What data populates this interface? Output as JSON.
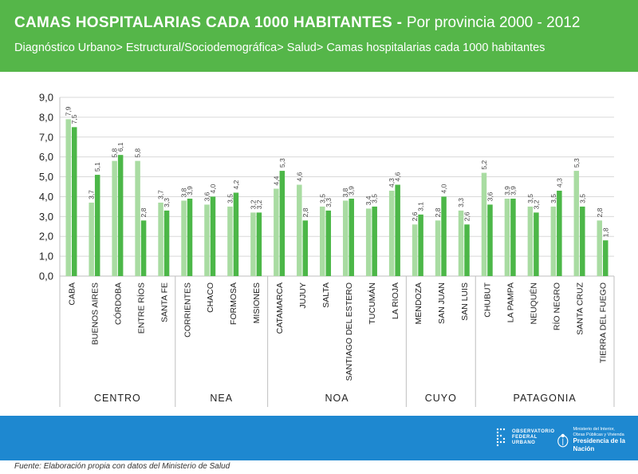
{
  "header": {
    "title_bold": "CAMAS HOSPITALARIAS CADA 1000 HABITANTES - ",
    "title_rest": "Por provincia 2000 - 2012",
    "subtitle": "Diagnóstico Urbano> Estructural/Sociodemográfica> Salud> Camas hospitalarias cada 1000 habitantes"
  },
  "footer": {
    "source": "Fuente: Elaboración propia con datos del Ministerio de Salud",
    "logo1_lines": [
      "OBSERVATORIO",
      "FEDERAL",
      "URBANO"
    ],
    "logo2_small": [
      "Ministerio del Interior,",
      "Obras Públicas y Vivienda"
    ],
    "logo2_big": "Presidencia de la Nación"
  },
  "colors": {
    "header_bg": "#55b649",
    "series_2000": "#a9dca2",
    "series_2012": "#4cb748",
    "footer_band": "#1e88d0"
  },
  "chart_data": {
    "type": "bar",
    "title": "CAMAS HOSPITALARIAS CADA 1000 HABITANTES - Por provincia 2000 - 2012",
    "xlabel": "",
    "ylabel": "",
    "ylim": [
      0,
      9
    ],
    "yticks": [
      "0,0",
      "1,0",
      "2,0",
      "3,0",
      "4,0",
      "5,0",
      "6,0",
      "7,0",
      "8,0",
      "9,0"
    ],
    "grid": true,
    "categories": [
      "CABA",
      "BUENOS AIRES",
      "CÓRDOBA",
      "ENTRE RÍOS",
      "SANTA FE",
      "CORRIENTES",
      "CHACO",
      "FORMOSA",
      "MISIONES",
      "CATAMARCA",
      "JUJUY",
      "SALTA",
      "SANTIAGO DEL ESTERO",
      "TUCUMÁN",
      "LA RIOJA",
      "MENDOZA",
      "SAN JUAN",
      "SAN LUIS",
      "CHUBUT",
      "LA PAMPA",
      "NEUQUÉN",
      "RÍO NEGRO",
      "SANTA CRUZ",
      "TIERRA DEL FUEGO"
    ],
    "series": [
      {
        "name": "2000",
        "values": [
          7.9,
          3.7,
          5.8,
          5.8,
          3.7,
          3.8,
          3.6,
          3.5,
          3.2,
          4.4,
          4.6,
          3.5,
          3.8,
          3.4,
          4.3,
          2.6,
          2.8,
          3.3,
          5.2,
          3.9,
          3.5,
          3.5,
          5.3,
          2.8
        ]
      },
      {
        "name": "2012",
        "values": [
          7.5,
          5.1,
          6.1,
          2.8,
          3.3,
          3.9,
          4.0,
          4.2,
          3.2,
          5.3,
          2.8,
          3.3,
          3.9,
          3.5,
          4.6,
          3.1,
          4.0,
          2.6,
          3.6,
          3.9,
          3.2,
          4.3,
          3.5,
          1.8
        ]
      }
    ],
    "labels_2000": [
      "7,9",
      "3,7",
      "5,8",
      "5,8",
      "3,7",
      "3,8",
      "3,6",
      "3,5",
      "3,2",
      "4,4",
      "4,6",
      "3,5",
      "3,8",
      "3,4",
      "4,3",
      "2,6",
      "2,8",
      "3,3",
      "5,2",
      "3,9",
      "3,5",
      "3,5",
      "5,3",
      "2,8"
    ],
    "labels_2012": [
      "7,5",
      "5,1",
      "6,1",
      "2,8",
      "3,3",
      "3,9",
      "4,0",
      "4,2",
      "3,2",
      "5,3",
      "2,8",
      "3,3",
      "3,9",
      "3,5",
      "4,6",
      "3,1",
      "4,0",
      "2,6",
      "3,6",
      "3,9",
      "3,2",
      "4,3",
      "3,5",
      "1,8"
    ],
    "groups": [
      {
        "name": "CENTRO",
        "count": 5
      },
      {
        "name": "NEA",
        "count": 4
      },
      {
        "name": "NOA",
        "count": 6
      },
      {
        "name": "CUYO",
        "count": 3
      },
      {
        "name": "PATAGONIA",
        "count": 6
      }
    ]
  }
}
